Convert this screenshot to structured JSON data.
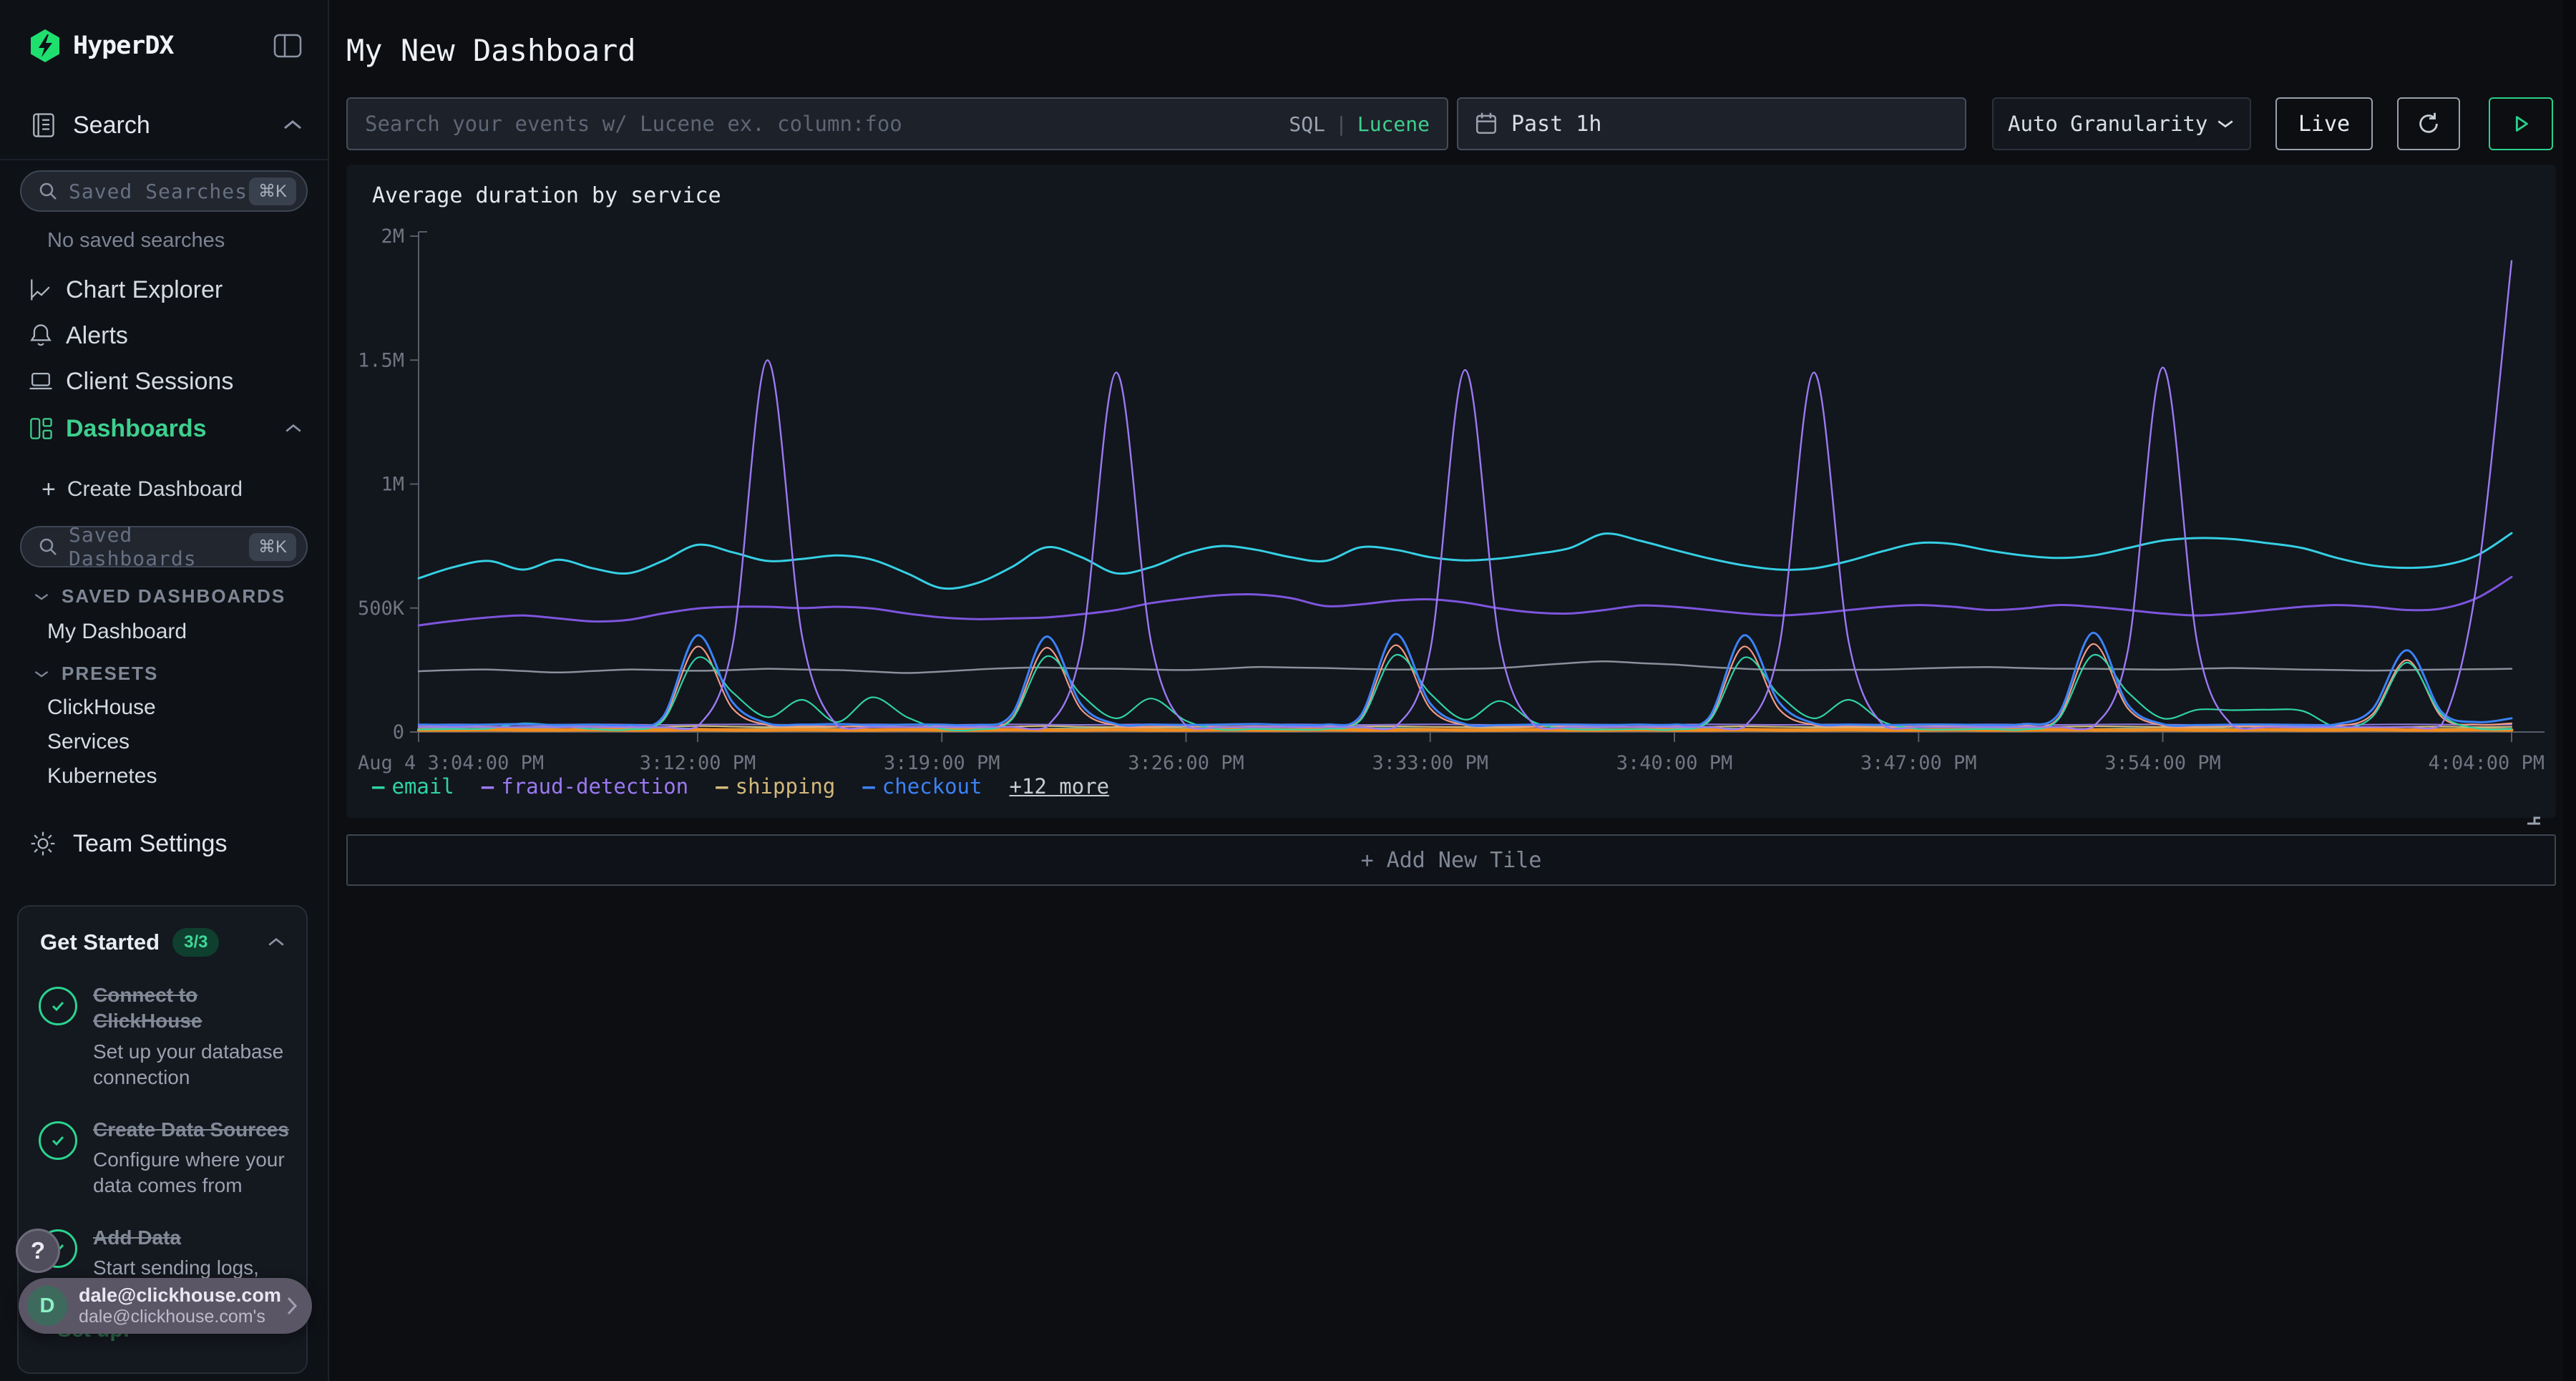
{
  "sidebar": {
    "logo_text": "HyperDX",
    "search_section_label": "Search",
    "saved_searches_placeholder": "Saved Searches",
    "saved_searches_shortcut": "⌘K",
    "no_saved_searches": "No saved searches",
    "nav": [
      {
        "label": "Chart Explorer"
      },
      {
        "label": "Alerts"
      },
      {
        "label": "Client Sessions"
      },
      {
        "label": "Dashboards"
      }
    ],
    "create_dashboard_label": "Create Dashboard",
    "saved_dashboards_placeholder": "Saved Dashboards",
    "saved_dashboards_shortcut": "⌘K",
    "saved_dashboards_header": "SAVED DASHBOARDS",
    "saved_dashboard_items": [
      "My Dashboard"
    ],
    "presets_header": "PRESETS",
    "preset_items": [
      "ClickHouse",
      "Services",
      "Kubernetes"
    ],
    "team_settings_label": "Team Settings",
    "get_started": {
      "title": "Get Started",
      "badge": "3/3",
      "items": [
        {
          "title": "Connect to ClickHouse",
          "desc": "Set up your database connection"
        },
        {
          "title": "Create Data Sources",
          "desc": "Configure where your data comes from"
        },
        {
          "title": "Add Data",
          "desc": "Start sending logs, metrics, or traces"
        }
      ],
      "hidden_link": "Set up!"
    },
    "help_label": "?",
    "user": {
      "initial": "D",
      "name": "dale@clickhouse.com",
      "subtitle": "dale@clickhouse.com's"
    }
  },
  "header": {
    "title": "My New Dashboard"
  },
  "toolbar": {
    "search_placeholder": "Search your events w/ Lucene ex. column:foo",
    "sql_label": "SQL",
    "divider": "|",
    "lucene_label": "Lucene",
    "time_range": "Past 1h",
    "granularity": "Auto Granularity",
    "live_label": "Live"
  },
  "tile": {
    "title": "Average duration by service",
    "legend_more": "+12 more",
    "add_new_tile": "+ Add New Tile"
  },
  "chart_data": {
    "type": "line",
    "title": "Average duration by service",
    "xlabel": "",
    "ylabel": "",
    "ylim": [
      0,
      2000000
    ],
    "grid": false,
    "legend_position": "bottom",
    "values_unit": "thousands",
    "minutes_step": 1,
    "x_range_labels": [
      "Aug 4 3:04:00 PM",
      "4:04:00 PM"
    ],
    "y_ticks": [
      {
        "label": "0",
        "value": 0
      },
      {
        "label": "500K",
        "value": 500
      },
      {
        "label": "1M",
        "value": 1000
      },
      {
        "label": "1.5M",
        "value": 1500
      },
      {
        "label": "2M",
        "value": 2000
      }
    ],
    "x_ticks": [
      {
        "label": "Aug 4 3:04:00 PM",
        "minute": 0,
        "align": "start"
      },
      {
        "label": "3:12:00 PM",
        "minute": 8,
        "align": "middle"
      },
      {
        "label": "3:19:00 PM",
        "minute": 15,
        "align": "middle"
      },
      {
        "label": "3:26:00 PM",
        "minute": 22,
        "align": "middle"
      },
      {
        "label": "3:33:00 PM",
        "minute": 29,
        "align": "middle"
      },
      {
        "label": "3:40:00 PM",
        "minute": 36,
        "align": "middle"
      },
      {
        "label": "3:47:00 PM",
        "minute": 43,
        "align": "middle"
      },
      {
        "label": "3:54:00 PM",
        "minute": 50,
        "align": "middle"
      },
      {
        "label": "4:04:00 PM",
        "minute": 60,
        "align": "end"
      }
    ],
    "legend": [
      {
        "label": "email",
        "color": "#2fd3a5"
      },
      {
        "label": "fraud-detection",
        "color": "#9b79f2"
      },
      {
        "label": "shipping",
        "color": "#d2b97c"
      },
      {
        "label": "checkout",
        "color": "#3b82f6"
      }
    ],
    "series": [
      {
        "name": "",
        "color": "#3dbd74",
        "width": 1.8,
        "values": [
          5,
          5,
          6,
          5,
          5,
          6,
          5,
          5,
          6,
          5,
          5,
          6,
          5,
          5,
          6,
          5,
          5,
          6,
          5,
          5,
          6,
          5,
          5,
          6,
          5,
          5,
          6,
          5,
          5,
          6,
          5,
          5,
          6,
          5,
          5,
          6,
          5,
          5,
          6,
          5,
          5,
          6,
          5,
          5,
          6,
          5,
          5,
          6,
          5,
          5,
          6,
          5,
          5,
          6,
          5,
          5,
          6,
          5,
          5,
          6,
          5
        ]
      },
      {
        "name": "",
        "color": "#8d7ae0",
        "width": 2,
        "values": [
          30,
          31,
          30,
          29,
          30,
          31,
          30,
          29,
          30,
          31,
          30,
          29,
          30,
          31,
          30,
          29,
          30,
          31,
          30,
          29,
          30,
          31,
          30,
          29,
          30,
          31,
          30,
          29,
          30,
          31,
          30,
          29,
          30,
          31,
          30,
          29,
          30,
          31,
          30,
          29,
          30,
          31,
          30,
          29,
          30,
          31,
          30,
          29,
          30,
          31,
          30,
          29,
          30,
          31,
          30,
          29,
          30,
          31,
          30,
          29,
          30
        ]
      },
      {
        "name": "",
        "color": "#37c6cf",
        "width": 1.8,
        "values": [
          14,
          15,
          13,
          16,
          14,
          12,
          15,
          17,
          14,
          13,
          15,
          16,
          14,
          12,
          14,
          16,
          15,
          13,
          14,
          16,
          14,
          13,
          15,
          16,
          14,
          12,
          14,
          15,
          16,
          14,
          13,
          15,
          14,
          16,
          14,
          12,
          15,
          16,
          14,
          13,
          14,
          16,
          15,
          13,
          14,
          15,
          16,
          14,
          13,
          15,
          14,
          16,
          14,
          13,
          15,
          16,
          14,
          12,
          14,
          15,
          14
        ]
      },
      {
        "name": "shipping",
        "color": "#d2b97c",
        "width": 2.2,
        "values": [
          20,
          22,
          19,
          21,
          23,
          20,
          18,
          21,
          24,
          22,
          20,
          19,
          21,
          23,
          21,
          20,
          19,
          22,
          24,
          21,
          20,
          19,
          21,
          22,
          20,
          19,
          20,
          22,
          23,
          21,
          20,
          19,
          21,
          23,
          22,
          20,
          19,
          21,
          23,
          21,
          20,
          19,
          20,
          22,
          23,
          21,
          20,
          21,
          23,
          22,
          20,
          19,
          21,
          22,
          21,
          20,
          19,
          21,
          22,
          20,
          21
        ]
      },
      {
        "name": "",
        "color": "#8a909b",
        "width": 2.5,
        "values": [
          245,
          250,
          252,
          246,
          240,
          246,
          252,
          250,
          247,
          250,
          255,
          252,
          250,
          244,
          238,
          244,
          252,
          258,
          260,
          256,
          255,
          252,
          250,
          255,
          262,
          260,
          258,
          254,
          252,
          253,
          255,
          258,
          268,
          278,
          285,
          278,
          272,
          262,
          255,
          250,
          250,
          251,
          252,
          256,
          260,
          262,
          258,
          255,
          255,
          253,
          252,
          255,
          258,
          255,
          252,
          250,
          248,
          250,
          252,
          253,
          255
        ]
      },
      {
        "name": "",
        "color": "#7d55dd",
        "width": 3,
        "values": [
          430,
          448,
          462,
          470,
          458,
          446,
          452,
          478,
          498,
          505,
          505,
          500,
          505,
          498,
          478,
          462,
          455,
          458,
          462,
          475,
          492,
          520,
          538,
          552,
          555,
          540,
          508,
          515,
          530,
          535,
          522,
          498,
          482,
          478,
          492,
          510,
          505,
          492,
          478,
          470,
          478,
          492,
          505,
          512,
          505,
          492,
          498,
          512,
          505,
          492,
          478,
          470,
          478,
          492,
          505,
          512,
          505,
          492,
          498,
          540,
          625
        ]
      },
      {
        "name": "",
        "color": "#35cfe3",
        "width": 3,
        "values": [
          620,
          665,
          690,
          655,
          695,
          660,
          640,
          690,
          755,
          725,
          690,
          698,
          712,
          695,
          640,
          580,
          600,
          665,
          745,
          705,
          640,
          665,
          720,
          750,
          735,
          705,
          690,
          745,
          735,
          705,
          692,
          700,
          718,
          742,
          800,
          772,
          735,
          700,
          672,
          655,
          660,
          690,
          730,
          762,
          758,
          732,
          712,
          702,
          712,
          742,
          772,
          782,
          778,
          762,
          742,
          702,
          672,
          662,
          672,
          712,
          802
        ]
      },
      {
        "name": "",
        "color": "#f18c1f",
        "width": 5,
        "values": [
          8,
          8,
          9,
          8,
          8,
          9,
          8,
          8,
          9,
          8,
          8,
          9,
          8,
          8,
          9,
          8,
          8,
          9,
          8,
          8,
          9,
          8,
          8,
          9,
          8,
          8,
          9,
          8,
          8,
          9,
          8,
          8,
          9,
          8,
          8,
          9,
          8,
          8,
          9,
          8,
          8,
          9,
          8,
          8,
          9,
          8,
          8,
          9,
          8,
          8,
          9,
          8,
          8,
          9,
          8,
          8,
          9,
          8,
          8,
          9,
          8
        ]
      },
      {
        "name": "",
        "color": "#f29a84",
        "width": 2.2,
        "values": [
          22,
          24,
          22,
          20,
          23,
          22,
          24,
          50,
          345,
          95,
          28,
          24,
          22,
          23,
          21,
          24,
          22,
          55,
          340,
          90,
          26,
          22,
          24,
          21,
          23,
          22,
          24,
          52,
          350,
          95,
          27,
          23,
          22,
          24,
          21,
          22,
          24,
          50,
          345,
          92,
          28,
          24,
          22,
          21,
          23,
          22,
          24,
          55,
          355,
          95,
          26,
          22,
          24,
          23,
          21,
          24,
          70,
          290,
          60,
          30,
          35
        ]
      },
      {
        "name": "email",
        "color": "#2fd3a5",
        "width": 2.2,
        "values": [
          10,
          12,
          14,
          35,
          25,
          12,
          10,
          45,
          300,
          160,
          60,
          130,
          40,
          140,
          60,
          12,
          10,
          50,
          305,
          150,
          55,
          135,
          45,
          10,
          12,
          10,
          12,
          48,
          310,
          155,
          50,
          125,
          38,
          12,
          10,
          12,
          10,
          45,
          300,
          150,
          55,
          130,
          40,
          12,
          10,
          12,
          10,
          50,
          310,
          160,
          55,
          90,
          88,
          90,
          85,
          20,
          60,
          280,
          70,
          15,
          12
        ]
      },
      {
        "name": "checkout",
        "color": "#3b82f6",
        "width": 3,
        "values": [
          30,
          28,
          30,
          32,
          28,
          30,
          28,
          60,
          390,
          120,
          35,
          30,
          32,
          28,
          30,
          30,
          28,
          70,
          385,
          110,
          32,
          30,
          28,
          30,
          32,
          28,
          30,
          65,
          395,
          115,
          32,
          28,
          30,
          30,
          28,
          30,
          30,
          60,
          390,
          120,
          35,
          30,
          28,
          30,
          30,
          28,
          32,
          70,
          400,
          110,
          32,
          28,
          30,
          30,
          28,
          32,
          90,
          330,
          80,
          40,
          55
        ]
      },
      {
        "name": "fraud-detection",
        "color": "#9b79f2",
        "width": 2.4,
        "values": [
          20,
          20,
          20,
          20,
          20,
          20,
          20,
          20,
          22,
          350,
          1500,
          380,
          25,
          20,
          20,
          20,
          20,
          20,
          20,
          340,
          1450,
          360,
          25,
          20,
          20,
          20,
          20,
          20,
          20,
          330,
          1460,
          350,
          25,
          20,
          20,
          20,
          20,
          20,
          20,
          340,
          1450,
          360,
          25,
          20,
          20,
          20,
          20,
          20,
          20,
          330,
          1470,
          350,
          25,
          20,
          20,
          20,
          20,
          20,
          30,
          600,
          1900
        ]
      }
    ]
  }
}
